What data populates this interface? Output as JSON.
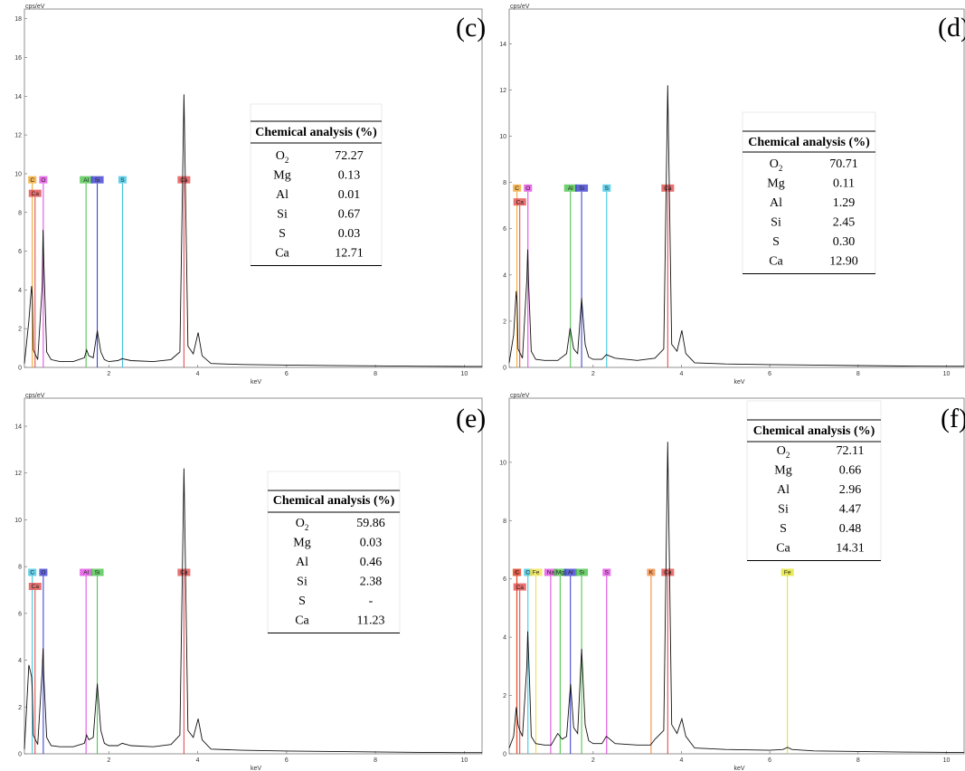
{
  "chart_data": [
    {
      "panel": "(c)",
      "type": "line",
      "ylabel": "cps/eV",
      "xlabel": "keV",
      "xlim": [
        0.1,
        10.4
      ],
      "ylim": [
        0,
        18.5
      ],
      "xticks": [
        2,
        4,
        6,
        8,
        10
      ],
      "yticks": [
        0,
        2,
        4,
        6,
        8,
        10,
        12,
        14,
        16,
        18
      ],
      "series": [
        {
          "x": [
            0.1,
            0.2,
            0.26,
            0.28,
            0.3,
            0.4,
            0.5,
            0.52,
            0.54,
            0.6,
            0.7,
            0.9,
            1.2,
            1.45,
            1.5,
            1.55,
            1.65,
            1.74,
            1.82,
            1.9,
            2.0,
            2.2,
            2.3,
            2.5,
            3.0,
            3.4,
            3.6,
            3.69,
            3.78,
            3.9,
            4.01,
            4.1,
            4.3,
            5.0,
            6.0,
            7.0,
            8.0,
            9.0,
            10.0,
            10.4
          ],
          "y": [
            0.2,
            2.4,
            4.2,
            3.6,
            0.9,
            0.4,
            4.2,
            7.1,
            5.2,
            0.8,
            0.4,
            0.3,
            0.3,
            0.5,
            0.9,
            0.6,
            0.5,
            1.9,
            0.8,
            0.4,
            0.3,
            0.35,
            0.45,
            0.35,
            0.3,
            0.4,
            0.8,
            14.1,
            1.1,
            0.7,
            1.8,
            0.6,
            0.2,
            0.15,
            0.12,
            0.1,
            0.08,
            0.06,
            0.05,
            0.05
          ]
        }
      ],
      "markers": [
        {
          "label": "C",
          "energy": 0.277,
          "color": "#f0a020",
          "tag_y": 9.5
        },
        {
          "label": "O",
          "energy": 0.525,
          "color": "#e040e0",
          "tag_y": 9.5
        },
        {
          "label": "Al",
          "energy": 1.487,
          "color": "#40c040",
          "tag_y": 9.5
        },
        {
          "label": "Si",
          "energy": 1.74,
          "color": "#3030d0",
          "tag_y": 9.5
        },
        {
          "label": "S",
          "energy": 2.307,
          "color": "#30c0e0",
          "tag_y": 9.5
        },
        {
          "label": "Ca",
          "energy": 3.69,
          "color": "#e04040",
          "tag_y": 9.5
        },
        {
          "label": "Ca",
          "energy": 0.34,
          "color": "#e04040",
          "tag_y": 8.8
        }
      ],
      "table": {
        "title": "Chemical analysis (%)",
        "rows": [
          {
            "el": "O",
            "sub": "2",
            "val": "72.27"
          },
          {
            "el": "Mg",
            "sub": "",
            "val": "0.13"
          },
          {
            "el": "Al",
            "sub": "",
            "val": "0.01"
          },
          {
            "el": "Si",
            "sub": "",
            "val": "0.67"
          },
          {
            "el": "S",
            "sub": "",
            "val": "0.03"
          },
          {
            "el": "Ca",
            "sub": "",
            "val": "12.71"
          }
        ]
      }
    },
    {
      "panel": "(d)",
      "type": "line",
      "ylabel": "cps/eV",
      "xlabel": "keV",
      "xlim": [
        0.1,
        10.4
      ],
      "ylim": [
        0,
        15.5
      ],
      "xticks": [
        2,
        4,
        6,
        8,
        10
      ],
      "yticks": [
        0,
        2,
        4,
        6,
        8,
        10,
        12,
        14
      ],
      "series": [
        {
          "x": [
            0.1,
            0.2,
            0.26,
            0.28,
            0.3,
            0.4,
            0.5,
            0.52,
            0.54,
            0.6,
            0.7,
            0.9,
            1.2,
            1.4,
            1.48,
            1.56,
            1.65,
            1.74,
            1.82,
            1.9,
            2.0,
            2.2,
            2.3,
            2.5,
            3.0,
            3.4,
            3.6,
            3.69,
            3.78,
            3.9,
            4.01,
            4.1,
            4.3,
            5.0,
            6.0,
            7.0,
            8.0,
            9.0,
            10.0,
            10.4
          ],
          "y": [
            0.2,
            1.4,
            3.3,
            2.8,
            0.8,
            0.4,
            3.8,
            5.1,
            3.6,
            0.7,
            0.35,
            0.3,
            0.3,
            0.6,
            1.7,
            0.8,
            0.6,
            3.0,
            1.0,
            0.45,
            0.35,
            0.35,
            0.55,
            0.4,
            0.3,
            0.4,
            0.8,
            12.2,
            1.0,
            0.7,
            1.6,
            0.6,
            0.2,
            0.15,
            0.12,
            0.1,
            0.08,
            0.06,
            0.05,
            0.05
          ]
        }
      ],
      "markers": [
        {
          "label": "C",
          "energy": 0.277,
          "color": "#f0a020",
          "tag_y": 7.6
        },
        {
          "label": "O",
          "energy": 0.525,
          "color": "#e040e0",
          "tag_y": 7.6
        },
        {
          "label": "Al",
          "energy": 1.487,
          "color": "#40c040",
          "tag_y": 7.6
        },
        {
          "label": "Si",
          "energy": 1.74,
          "color": "#3030d0",
          "tag_y": 7.6
        },
        {
          "label": "S",
          "energy": 2.307,
          "color": "#30c0e0",
          "tag_y": 7.6
        },
        {
          "label": "Ca",
          "energy": 3.69,
          "color": "#e04040",
          "tag_y": 7.6
        },
        {
          "label": "Ca",
          "energy": 0.34,
          "color": "#e04040",
          "tag_y": 7.0
        }
      ],
      "table": {
        "title": "Chemical analysis (%)",
        "rows": [
          {
            "el": "O",
            "sub": "2",
            "val": "70.71"
          },
          {
            "el": "Mg",
            "sub": "",
            "val": "0.11"
          },
          {
            "el": "Al",
            "sub": "",
            "val": "1.29"
          },
          {
            "el": "Si",
            "sub": "",
            "val": "2.45"
          },
          {
            "el": "S",
            "sub": "",
            "val": "0.30"
          },
          {
            "el": "Ca",
            "sub": "",
            "val": "12.90"
          }
        ]
      }
    },
    {
      "panel": "(e)",
      "type": "line",
      "ylabel": "cps/eV",
      "xlabel": "keV",
      "xlim": [
        0.1,
        10.4
      ],
      "ylim": [
        0,
        15.2
      ],
      "xticks": [
        2,
        4,
        6,
        8,
        10
      ],
      "yticks": [
        0,
        2,
        4,
        6,
        8,
        10,
        12,
        14
      ],
      "series": [
        {
          "x": [
            0.1,
            0.2,
            0.26,
            0.28,
            0.3,
            0.4,
            0.5,
            0.52,
            0.54,
            0.6,
            0.7,
            0.9,
            1.2,
            1.45,
            1.5,
            1.55,
            1.65,
            1.74,
            1.82,
            1.9,
            2.0,
            2.2,
            2.3,
            2.5,
            3.0,
            3.4,
            3.6,
            3.69,
            3.78,
            3.9,
            4.01,
            4.1,
            4.3,
            5.0,
            6.0,
            7.0,
            8.0,
            9.0,
            10.0,
            10.4
          ],
          "y": [
            0.2,
            3.8,
            3.3,
            2.6,
            0.8,
            0.4,
            3.6,
            4.5,
            3.2,
            0.7,
            0.35,
            0.3,
            0.3,
            0.45,
            0.8,
            0.6,
            0.7,
            3.0,
            1.0,
            0.45,
            0.35,
            0.35,
            0.45,
            0.35,
            0.3,
            0.4,
            0.8,
            12.2,
            1.0,
            0.7,
            1.5,
            0.6,
            0.2,
            0.15,
            0.12,
            0.1,
            0.08,
            0.06,
            0.05,
            0.05
          ]
        }
      ],
      "markers": [
        {
          "label": "C",
          "energy": 0.277,
          "color": "#30c0e0",
          "tag_y": 7.6
        },
        {
          "label": "O",
          "energy": 0.525,
          "color": "#3030d0",
          "tag_y": 7.6
        },
        {
          "label": "Al",
          "energy": 1.487,
          "color": "#e040e0",
          "tag_y": 7.6
        },
        {
          "label": "Si",
          "energy": 1.74,
          "color": "#40c040",
          "tag_y": 7.6
        },
        {
          "label": "Ca",
          "energy": 3.69,
          "color": "#e04040",
          "tag_y": 7.6
        },
        {
          "label": "Ca",
          "energy": 0.34,
          "color": "#e04040",
          "tag_y": 7.0
        }
      ],
      "table": {
        "title": "Chemical analysis (%)",
        "rows": [
          {
            "el": "O",
            "sub": "2",
            "val": "59.86"
          },
          {
            "el": "Mg",
            "sub": "",
            "val": "0.03"
          },
          {
            "el": "Al",
            "sub": "",
            "val": "0.46"
          },
          {
            "el": "Si",
            "sub": "",
            "val": "2.38"
          },
          {
            "el": "S",
            "sub": "",
            "val": "-"
          },
          {
            "el": "Ca",
            "sub": "",
            "val": "11.23"
          }
        ]
      }
    },
    {
      "panel": "(f)",
      "type": "line",
      "ylabel": "cps/eV",
      "xlabel": "keV",
      "xlim": [
        0.1,
        10.4
      ],
      "ylim": [
        0,
        12.2
      ],
      "xticks": [
        2,
        4,
        6,
        8,
        10
      ],
      "yticks": [
        0,
        2,
        4,
        6,
        8,
        10
      ],
      "series": [
        {
          "x": [
            0.1,
            0.2,
            0.26,
            0.3,
            0.34,
            0.4,
            0.5,
            0.52,
            0.56,
            0.6,
            0.7,
            0.9,
            1.05,
            1.2,
            1.3,
            1.4,
            1.49,
            1.56,
            1.65,
            1.74,
            1.82,
            1.9,
            2.0,
            2.2,
            2.3,
            2.5,
            3.0,
            3.3,
            3.4,
            3.6,
            3.69,
            3.78,
            3.9,
            4.01,
            4.1,
            4.3,
            5.0,
            6.0,
            6.3,
            6.4,
            6.5,
            7.0,
            8.0,
            9.0,
            10.0,
            10.4
          ],
          "y": [
            0.2,
            0.6,
            1.6,
            1.0,
            0.8,
            0.6,
            3.0,
            4.2,
            2.5,
            0.6,
            0.35,
            0.3,
            0.3,
            0.7,
            0.5,
            0.6,
            2.4,
            0.9,
            0.7,
            3.6,
            1.0,
            0.45,
            0.35,
            0.35,
            0.6,
            0.35,
            0.3,
            0.3,
            0.5,
            0.8,
            10.7,
            1.0,
            0.7,
            1.2,
            0.6,
            0.2,
            0.15,
            0.12,
            0.15,
            0.22,
            0.15,
            0.1,
            0.08,
            0.06,
            0.05,
            0.05
          ]
        }
      ],
      "markers": [
        {
          "label": "K",
          "energy": 0.27,
          "color": "#f0a020",
          "tag_y": 6.1
        },
        {
          "label": "C",
          "energy": 0.277,
          "color": "#e04040",
          "tag_y": 6.1
        },
        {
          "label": "O",
          "energy": 0.525,
          "color": "#30c0e0",
          "tag_y": 6.1
        },
        {
          "label": "Fe",
          "energy": 0.705,
          "color": "#f0e040",
          "tag_y": 6.1
        },
        {
          "label": "Na",
          "energy": 1.04,
          "color": "#e040e0",
          "tag_y": 6.1
        },
        {
          "label": "Mg",
          "energy": 1.254,
          "color": "#40c040",
          "tag_y": 6.1
        },
        {
          "label": "Al",
          "energy": 1.487,
          "color": "#3030d0",
          "tag_y": 6.1
        },
        {
          "label": "Si",
          "energy": 1.74,
          "color": "#40c040",
          "tag_y": 6.1
        },
        {
          "label": "S",
          "energy": 2.307,
          "color": "#e040e0",
          "tag_y": 6.1
        },
        {
          "label": "K",
          "energy": 3.313,
          "color": "#f08030",
          "tag_y": 6.1
        },
        {
          "label": "Ca",
          "energy": 3.69,
          "color": "#e04040",
          "tag_y": 6.1
        },
        {
          "label": "Fe",
          "energy": 6.4,
          "color": "#e0e020",
          "tag_y": 6.1
        },
        {
          "label": "Ca",
          "energy": 0.34,
          "color": "#e04040",
          "tag_y": 5.6
        }
      ],
      "table": {
        "title": "Chemical analysis (%)",
        "rows": [
          {
            "el": "O",
            "sub": "2",
            "val": "72.11"
          },
          {
            "el": "Mg",
            "sub": "",
            "val": "0.66"
          },
          {
            "el": "Al",
            "sub": "",
            "val": "2.96"
          },
          {
            "el": "Si",
            "sub": "",
            "val": "4.47"
          },
          {
            "el": "S",
            "sub": "",
            "val": "0.48"
          },
          {
            "el": "Ca",
            "sub": "",
            "val": "14.31"
          }
        ]
      }
    }
  ]
}
